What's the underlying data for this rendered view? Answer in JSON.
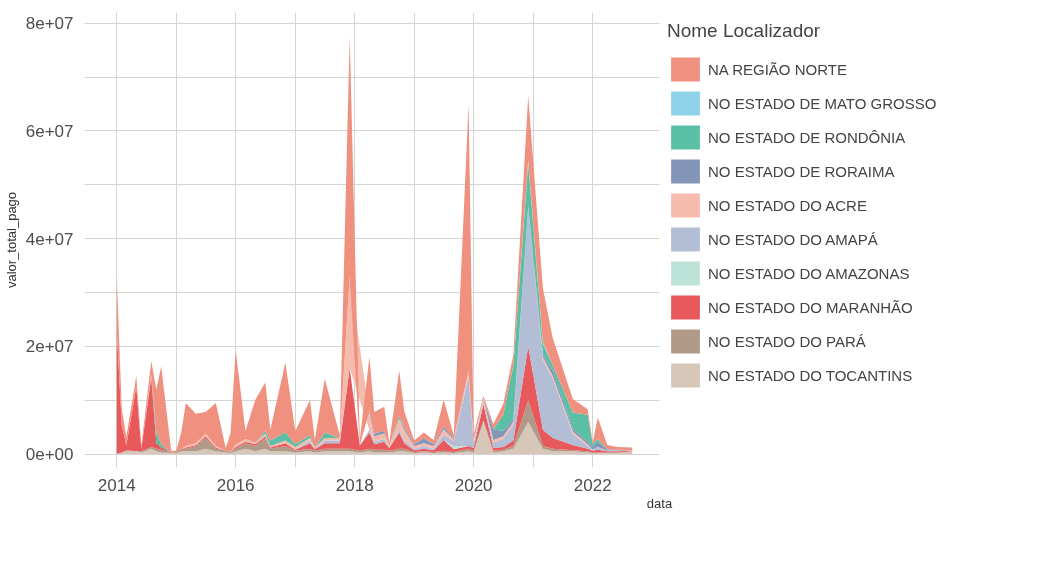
{
  "chart_data": {
    "type": "area",
    "stacked": true,
    "xlabel": "data",
    "ylabel": "valor_total_pago",
    "legend_title": "Nome Localizador",
    "legend": "right",
    "grid": true,
    "x": [
      "2014-01",
      "2014-02",
      "2014-03",
      "2014-05",
      "2014-06",
      "2014-08",
      "2014-09",
      "2014-10",
      "2014-12",
      "2015-01",
      "2015-02",
      "2015-03",
      "2015-05",
      "2015-07",
      "2015-09",
      "2015-11",
      "2015-12",
      "2016-01",
      "2016-03",
      "2016-05",
      "2016-07",
      "2016-08",
      "2016-11",
      "2017-01",
      "2017-04",
      "2017-05",
      "2017-07",
      "2017-10",
      "2017-12",
      "2018-02",
      "2018-04",
      "2018-05",
      "2018-07",
      "2018-08",
      "2018-10",
      "2018-11",
      "2019-01",
      "2019-03",
      "2019-05",
      "2019-07",
      "2019-09",
      "2019-12",
      "2020-01",
      "2020-03",
      "2020-05",
      "2020-07",
      "2020-09",
      "2020-12",
      "2021-03",
      "2021-05",
      "2021-09",
      "2021-12",
      "2022-01",
      "2022-02",
      "2022-04",
      "2022-06",
      "2022-09"
    ],
    "xlim": [
      "2013-06-17",
      "2023-02-15"
    ],
    "xticks": [
      {
        "value": "2014",
        "label": "2014"
      },
      {
        "value": "2015",
        "label": null
      },
      {
        "value": "2016",
        "label": "2016"
      },
      {
        "value": "2017",
        "label": null
      },
      {
        "value": "2018",
        "label": "2018"
      },
      {
        "value": "2019",
        "label": null
      },
      {
        "value": "2020",
        "label": "2020"
      },
      {
        "value": "2021",
        "label": null
      },
      {
        "value": "2022",
        "label": "2022"
      }
    ],
    "ylim": [
      -2500000,
      82000000
    ],
    "yticks": [
      {
        "value": 0,
        "label": "0e+00"
      },
      {
        "value": 10000000,
        "label": null
      },
      {
        "value": 20000000,
        "label": "2e+07"
      },
      {
        "value": 30000000,
        "label": null
      },
      {
        "value": 40000000,
        "label": "4e+07"
      },
      {
        "value": 50000000,
        "label": null
      },
      {
        "value": 60000000,
        "label": "6e+07"
      },
      {
        "value": 70000000,
        "label": null
      },
      {
        "value": 80000000,
        "label": "8e+07"
      }
    ],
    "series": [
      {
        "name": "NO ESTADO DO TOCANTINS",
        "color": "#d6c7b8",
        "values": [
          0,
          300000,
          500000,
          500000,
          300000,
          1000000,
          500000,
          300000,
          200000,
          200000,
          500000,
          500000,
          500000,
          1000000,
          500000,
          300000,
          200000,
          500000,
          1000000,
          500000,
          1000000,
          500000,
          500000,
          300000,
          500000,
          300000,
          500000,
          500000,
          500000,
          300000,
          500000,
          300000,
          300000,
          300000,
          500000,
          500000,
          200000,
          300000,
          200000,
          300000,
          200000,
          500000,
          300000,
          6000000,
          300000,
          500000,
          1000000,
          6000000,
          1000000,
          500000,
          500000,
          300000,
          200000,
          200000,
          200000,
          200000,
          500000
        ]
      },
      {
        "name": "NO ESTADO DO PARÁ",
        "color": "#b09a87",
        "values": [
          0,
          0,
          200000,
          0,
          200000,
          300000,
          500000,
          500000,
          100000,
          200000,
          500000,
          500000,
          1000000,
          2000000,
          500000,
          300000,
          200000,
          500000,
          1000000,
          1000000,
          2000000,
          500000,
          1000000,
          300000,
          500000,
          300000,
          500000,
          500000,
          500000,
          300000,
          500000,
          500000,
          500000,
          300000,
          500000,
          500000,
          200000,
          200000,
          200000,
          300000,
          200000,
          500000,
          300000,
          300000,
          300000,
          300000,
          500000,
          4000000,
          500000,
          500000,
          200000,
          200000,
          100000,
          100000,
          100000,
          100000,
          0
        ]
      },
      {
        "name": "NO ESTADO DO MARANHÃO",
        "color": "#e8595c",
        "values": [
          23000000,
          5000000,
          1000000,
          12000000,
          500000,
          13000000,
          1000000,
          500000,
          0,
          0,
          0,
          200000,
          200000,
          300000,
          200000,
          0,
          0,
          300000,
          300000,
          300000,
          300000,
          200000,
          500000,
          200000,
          1000000,
          300000,
          1000000,
          1000000,
          15000000,
          1000000,
          3000000,
          1000000,
          1500000,
          500000,
          3000000,
          1000000,
          300000,
          500000,
          300000,
          2000000,
          500000,
          500000,
          500000,
          3000000,
          500000,
          500000,
          1000000,
          10000000,
          3000000,
          2000000,
          1000000,
          500000,
          300000,
          500000,
          200000,
          200000,
          100000
        ]
      },
      {
        "name": "NO ESTADO DO AMAZONAS",
        "color": "#bde3d9",
        "values": [
          null,
          null,
          null,
          null,
          null,
          null,
          null,
          null,
          null,
          null,
          null,
          null,
          null,
          null,
          null,
          null,
          null,
          null,
          null,
          null,
          null,
          null,
          null,
          null,
          null,
          null,
          null,
          null,
          null,
          null,
          null,
          null,
          null,
          null,
          null,
          null,
          null,
          null,
          null,
          0,
          500000,
          0,
          null,
          null,
          null,
          null,
          null,
          null,
          null,
          null,
          null,
          null,
          null,
          null,
          null,
          null,
          null
        ]
      },
      {
        "name": "NO ESTADO DO AMAPÁ",
        "color": "#b3bdd6",
        "values": [
          null,
          null,
          null,
          null,
          null,
          null,
          null,
          null,
          null,
          null,
          null,
          null,
          null,
          null,
          null,
          null,
          null,
          null,
          null,
          null,
          null,
          null,
          null,
          0,
          500000,
          0,
          500000,
          500000,
          0,
          0,
          500000,
          500000,
          500000,
          0,
          500000,
          500000,
          300000,
          500000,
          300000,
          1000000,
          1000000,
          13000000,
          1000000,
          500000,
          1000000,
          1500000,
          3000000,
          26000000,
          13000000,
          11000000,
          2000000,
          500000,
          300000,
          500000,
          200000,
          200000,
          100000
        ]
      },
      {
        "name": "NO ESTADO DO ACRE",
        "color": "#f5bcae",
        "values": [
          null,
          null,
          null,
          null,
          0,
          500000,
          0,
          null,
          null,
          null,
          0,
          300000,
          300000,
          500000,
          300000,
          0,
          0,
          500000,
          500000,
          300000,
          500000,
          300000,
          500000,
          500000,
          500000,
          300000,
          500000,
          500000,
          17000000,
          null,
          3000000,
          1000000,
          1000000,
          500000,
          2000000,
          2000000,
          500000,
          500000,
          500000,
          1000000,
          300000,
          1000000,
          500000,
          500000,
          500000,
          500000,
          500000,
          0,
          500000,
          500000,
          500000,
          300000,
          0,
          null,
          null,
          null,
          null
        ]
      },
      {
        "name": "NO ESTADO DE RORAIMA",
        "color": "#8496b8",
        "values": [
          null,
          null,
          null,
          null,
          null,
          null,
          null,
          null,
          null,
          null,
          null,
          null,
          null,
          null,
          null,
          null,
          null,
          null,
          null,
          null,
          null,
          null,
          null,
          null,
          null,
          null,
          null,
          null,
          null,
          null,
          500000,
          500000,
          500000,
          0,
          0,
          500000,
          300000,
          1000000,
          300000,
          500000,
          300000,
          0,
          null,
          0,
          2000000,
          1000000,
          500000,
          0,
          500000,
          1000000,
          500000,
          500000,
          500000,
          1000000,
          200000,
          100000,
          0
        ]
      },
      {
        "name": "NO ESTADO DE RONDÔNIA",
        "color": "#5bbfa6",
        "values": [
          null,
          null,
          null,
          null,
          null,
          0,
          2000000,
          500000,
          0,
          null,
          null,
          null,
          null,
          null,
          null,
          null,
          null,
          null,
          null,
          0,
          500000,
          1000000,
          1500000,
          500000,
          500000,
          0,
          1000000,
          0,
          null,
          null,
          null,
          null,
          null,
          0,
          500000,
          0,
          null,
          null,
          null,
          null,
          null,
          null,
          null,
          null,
          0,
          3000000,
          10000000,
          8000000,
          2000000,
          1000000,
          3000000,
          5000000,
          500000,
          500000,
          0,
          null,
          null
        ]
      },
      {
        "name": "NO ESTADO DE MATO GROSSO",
        "color": "#8fd3e8",
        "values": [
          null,
          null,
          null,
          null,
          null,
          null,
          null,
          null,
          null,
          null,
          null,
          null,
          null,
          null,
          null,
          null,
          null,
          null,
          null,
          null,
          null,
          null,
          null,
          null,
          null,
          null,
          null,
          null,
          null,
          null,
          null,
          null,
          null,
          null,
          null,
          null,
          null,
          null,
          null,
          null,
          null,
          null,
          null,
          null,
          null,
          null,
          0,
          500000,
          300000,
          0,
          null,
          null,
          null,
          null,
          null,
          null,
          null
        ]
      },
      {
        "name": "NA REGIÃO NORTE",
        "color": "#f0907f",
        "values": [
          10000000,
          3000000,
          1500000,
          2000000,
          500000,
          2500000,
          8000000,
          14500000,
          300000,
          200000,
          3000000,
          8000000,
          5500000,
          4000000,
          8000000,
          500000,
          3500000,
          17500000,
          1500000,
          8000000,
          9000000,
          2000000,
          13000000,
          2500000,
          6500000,
          1500000,
          10000000,
          500000,
          44500000,
          1000000,
          10000000,
          4000000,
          4500000,
          500000,
          8500000,
          3000000,
          700000,
          1000000,
          800000,
          5000000,
          500000,
          49500000,
          1000000,
          500000,
          1000000,
          2000000,
          2000000,
          12000000,
          10000000,
          5000000,
          2500000,
          1000000,
          300000,
          4000000,
          800000,
          500000,
          500000
        ]
      }
    ]
  }
}
